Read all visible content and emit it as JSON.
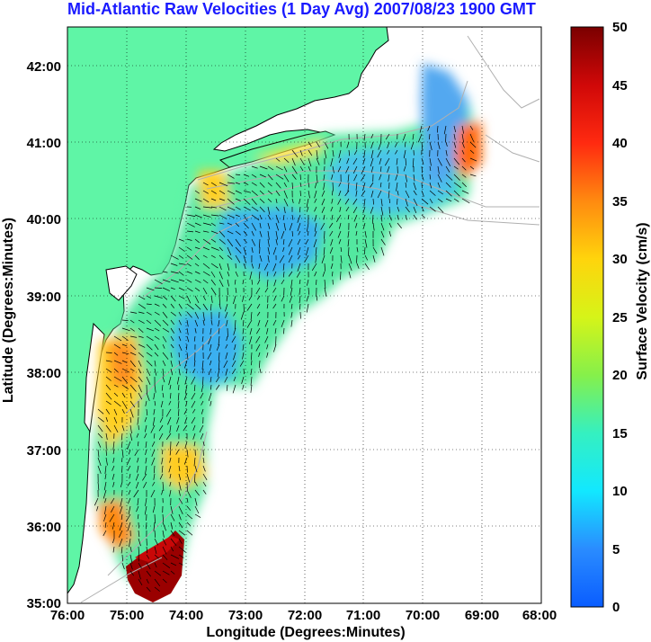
{
  "title": "Mid-Atlantic Raw Velocities (1 Day Avg) 2007/08/23 1900 GMT",
  "x_axis": {
    "label": "Longitude (Degrees:Minutes)",
    "ticks": [
      "76:00",
      "75:00",
      "74:00",
      "73:00",
      "72:00",
      "71:00",
      "70:00",
      "69:00",
      "68:00"
    ]
  },
  "y_axis": {
    "label": "Latitude (Degrees:Minutes)",
    "ticks": [
      "35:00",
      "36:00",
      "37:00",
      "38:00",
      "39:00",
      "40:00",
      "41:00",
      "42:00"
    ]
  },
  "colorbar": {
    "label": "Surface Velocity (cm/s)",
    "ticks": [
      "0",
      "5",
      "10",
      "15",
      "20",
      "25",
      "30",
      "35",
      "40",
      "45",
      "50"
    ],
    "min": 0,
    "max": 50
  },
  "colors": {
    "land": "#5ff5a6",
    "title": "#1a1aff",
    "grid": "#000000"
  }
}
